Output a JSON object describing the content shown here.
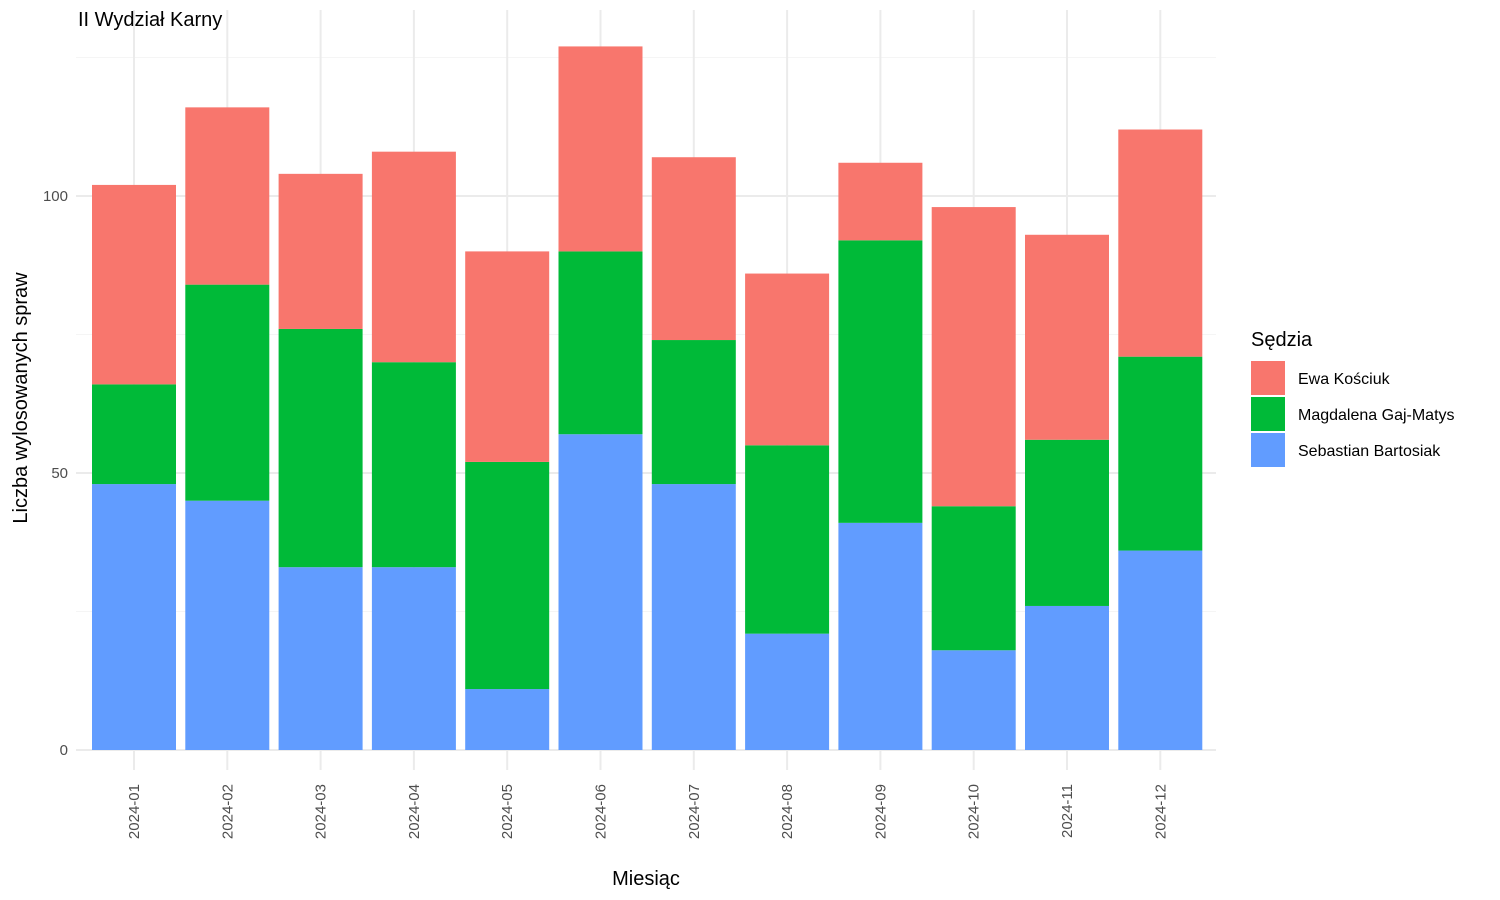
{
  "chart_data": {
    "type": "bar",
    "stacked": true,
    "title": "II Wydział Karny",
    "xlabel": "Miesiąc",
    "ylabel": "Liczba wylosowanych spraw",
    "ylim": [
      0,
      128
    ],
    "yticks": [
      0,
      50,
      100
    ],
    "grid": true,
    "categories": [
      "2024-01",
      "2024-02",
      "2024-03",
      "2024-04",
      "2024-05",
      "2024-06",
      "2024-07",
      "2024-08",
      "2024-09",
      "2024-10",
      "2024-11",
      "2024-12"
    ],
    "legend": {
      "title": "Sędzia",
      "position": "right"
    },
    "series": [
      {
        "name": "Sebastian Bartosiak",
        "color": "#619CFF",
        "values": [
          48,
          45,
          33,
          33,
          11,
          57,
          48,
          21,
          41,
          18,
          26,
          36
        ]
      },
      {
        "name": "Magdalena Gaj-Matys",
        "color": "#00BA38",
        "values": [
          18,
          39,
          43,
          37,
          41,
          33,
          26,
          34,
          51,
          26,
          30,
          35
        ]
      },
      {
        "name": "Ewa Kościuk",
        "color": "#F8766D",
        "values": [
          36,
          32,
          28,
          38,
          38,
          37,
          33,
          31,
          14,
          54,
          37,
          41
        ]
      }
    ],
    "legend_order": [
      "Ewa Kościuk",
      "Magdalena Gaj-Matys",
      "Sebastian Bartosiak"
    ]
  }
}
